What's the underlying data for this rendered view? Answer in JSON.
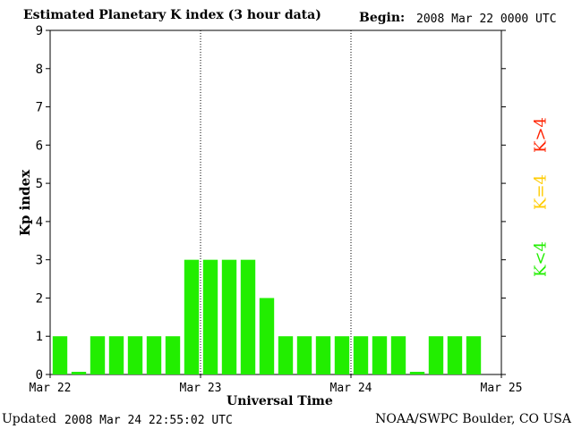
{
  "header": {
    "title": "Estimated Planetary K index (3 hour data)",
    "begin_label": "Begin:",
    "begin_value": "2008 Mar 22 0000 UTC"
  },
  "footer": {
    "updated_label": "Updated",
    "updated_value": "2008 Mar 24 22:55:02 UTC",
    "credit": "NOAA/SWPC Boulder, CO USA"
  },
  "legend": {
    "high": {
      "label": "K>4",
      "color": "#ff2200"
    },
    "equal": {
      "label": "K=4",
      "color": "#ffcc00"
    },
    "low": {
      "label": "K<4",
      "color": "#22ee00"
    }
  },
  "chart_data": {
    "type": "bar",
    "title": "Estimated Planetary K index (3 hour data)",
    "xlabel": "Universal Time",
    "ylabel": "Kp index",
    "ylim": [
      0,
      9
    ],
    "yticks": [
      0,
      1,
      2,
      3,
      4,
      5,
      6,
      7,
      8,
      9
    ],
    "xlim_days": [
      0,
      3
    ],
    "xtick_labels": [
      "Mar 22",
      "Mar 23",
      "Mar 24",
      "Mar 25"
    ],
    "day_dividers": [
      "Mar 23",
      "Mar 24"
    ],
    "interval_hours": 3,
    "values": [
      1,
      0,
      1,
      1,
      1,
      1,
      1,
      3,
      3,
      3,
      3,
      2,
      1,
      1,
      1,
      1,
      1,
      1,
      1,
      0,
      1,
      1,
      1
    ],
    "bar_color": "#22ee00"
  }
}
